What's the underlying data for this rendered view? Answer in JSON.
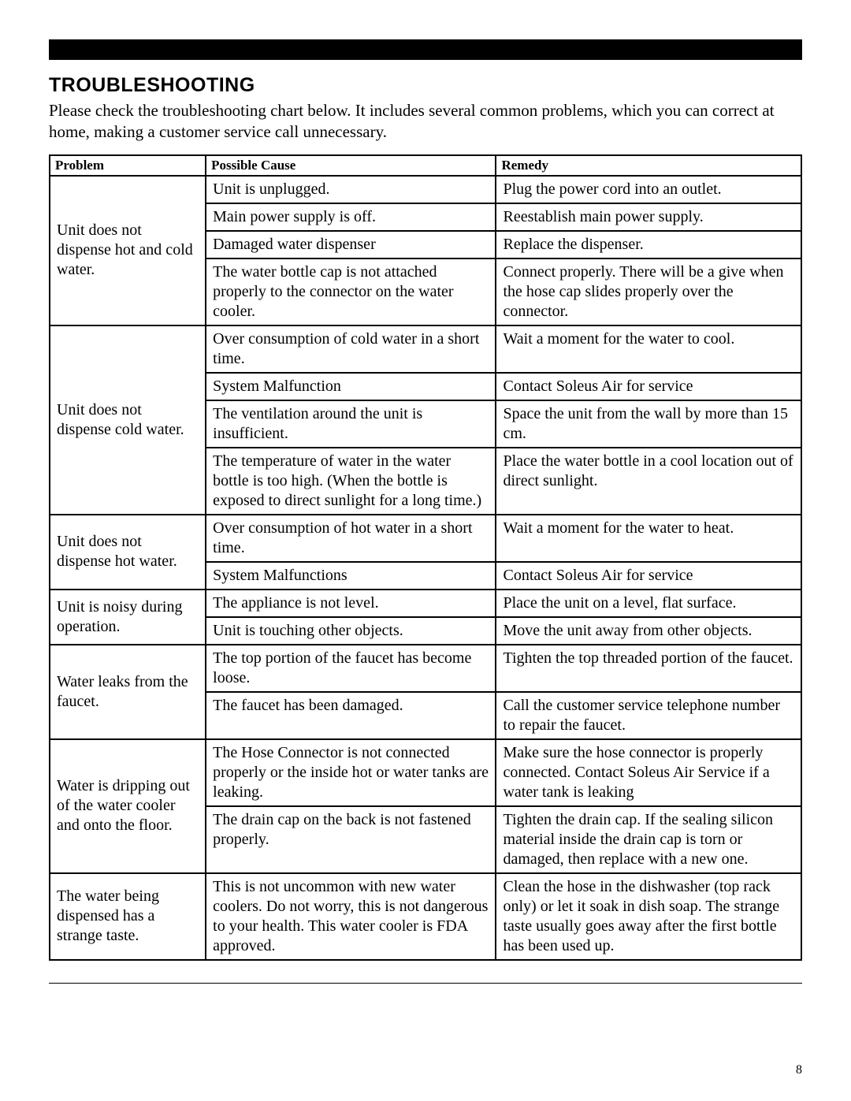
{
  "section": {
    "title": "TROUBLESHOOTING",
    "intro": "Please check the troubleshooting chart below.  It includes several common problems, which you can correct at home, making a customer service call unnecessary."
  },
  "table": {
    "headers": {
      "problem": "Problem",
      "cause": "Possible Cause",
      "remedy": "Remedy"
    },
    "rows": [
      {
        "problem": "Unit does not dispense hot and cold water.",
        "causes": [
          {
            "cause": "Unit is unplugged.",
            "remedy": "Plug the power cord into an outlet."
          },
          {
            "cause": "Main power supply is off.",
            "remedy": "Reestablish main power supply."
          },
          {
            "cause": "Damaged water dispenser",
            "remedy": "Replace the dispenser."
          },
          {
            "cause": "The water bottle cap is not attached properly to the connector on the water cooler.",
            "remedy": "Connect properly. There will be a give when the hose cap slides properly over the connector."
          }
        ]
      },
      {
        "problem": "Unit does not dispense cold water.",
        "causes": [
          {
            "cause": "Over consumption of cold water in a short time.",
            "remedy": "Wait a moment for the water to cool."
          },
          {
            "cause": "System Malfunction",
            "remedy": "Contact Soleus Air for service"
          },
          {
            "cause": "The ventilation around the unit is insufficient.",
            "remedy": "Space the unit from the wall by more than 15 cm."
          },
          {
            "cause": "The temperature of water in the water bottle is too high. (When the bottle is exposed to direct sunlight for a long time.)",
            "remedy": "Place the water bottle in a cool location out of direct sunlight."
          }
        ]
      },
      {
        "problem": "Unit does not dispense hot water.",
        "causes": [
          {
            "cause": "Over consumption of hot water in a short time.",
            "remedy": "Wait a moment for the water to heat."
          },
          {
            "cause": "System Malfunctions",
            "remedy": "Contact Soleus Air for service"
          }
        ]
      },
      {
        "problem": "Unit is noisy during operation.",
        "causes": [
          {
            "cause": "The appliance is not level.",
            "remedy": "Place the unit on a level, flat surface."
          },
          {
            "cause": "Unit is touching other objects.",
            "remedy": "Move the unit away from other objects."
          }
        ]
      },
      {
        "problem": "Water leaks from the faucet.",
        "causes": [
          {
            "cause": "The top portion of the faucet has become loose.",
            "remedy": "Tighten the top threaded portion of the faucet."
          },
          {
            "cause": "The faucet has been damaged.",
            "remedy": "Call the customer service telephone number to repair the faucet."
          }
        ]
      },
      {
        "problem": "Water is dripping out of the water cooler and onto the floor.",
        "causes": [
          {
            "cause": "The Hose Connector is not connected properly or the inside hot or water tanks are leaking.",
            "remedy": "Make sure the hose connector is properly connected. Contact Soleus Air Service if a water tank is leaking"
          },
          {
            "cause": "The drain cap on the back is not fastened properly.",
            "remedy": "Tighten the drain cap. If the sealing silicon material inside the drain cap is torn or damaged, then replace with a new one."
          }
        ]
      },
      {
        "problem": "The water being dispensed has a strange taste.",
        "causes": [
          {
            "cause": "This is not uncommon with new water coolers. Do not worry, this is not dangerous to your health. This water cooler is FDA approved.",
            "remedy": "Clean the hose in the dishwasher (top rack only) or let it soak in dish soap. The strange taste usually goes away after the first bottle has been used up."
          }
        ]
      }
    ]
  },
  "pageNumber": "8"
}
